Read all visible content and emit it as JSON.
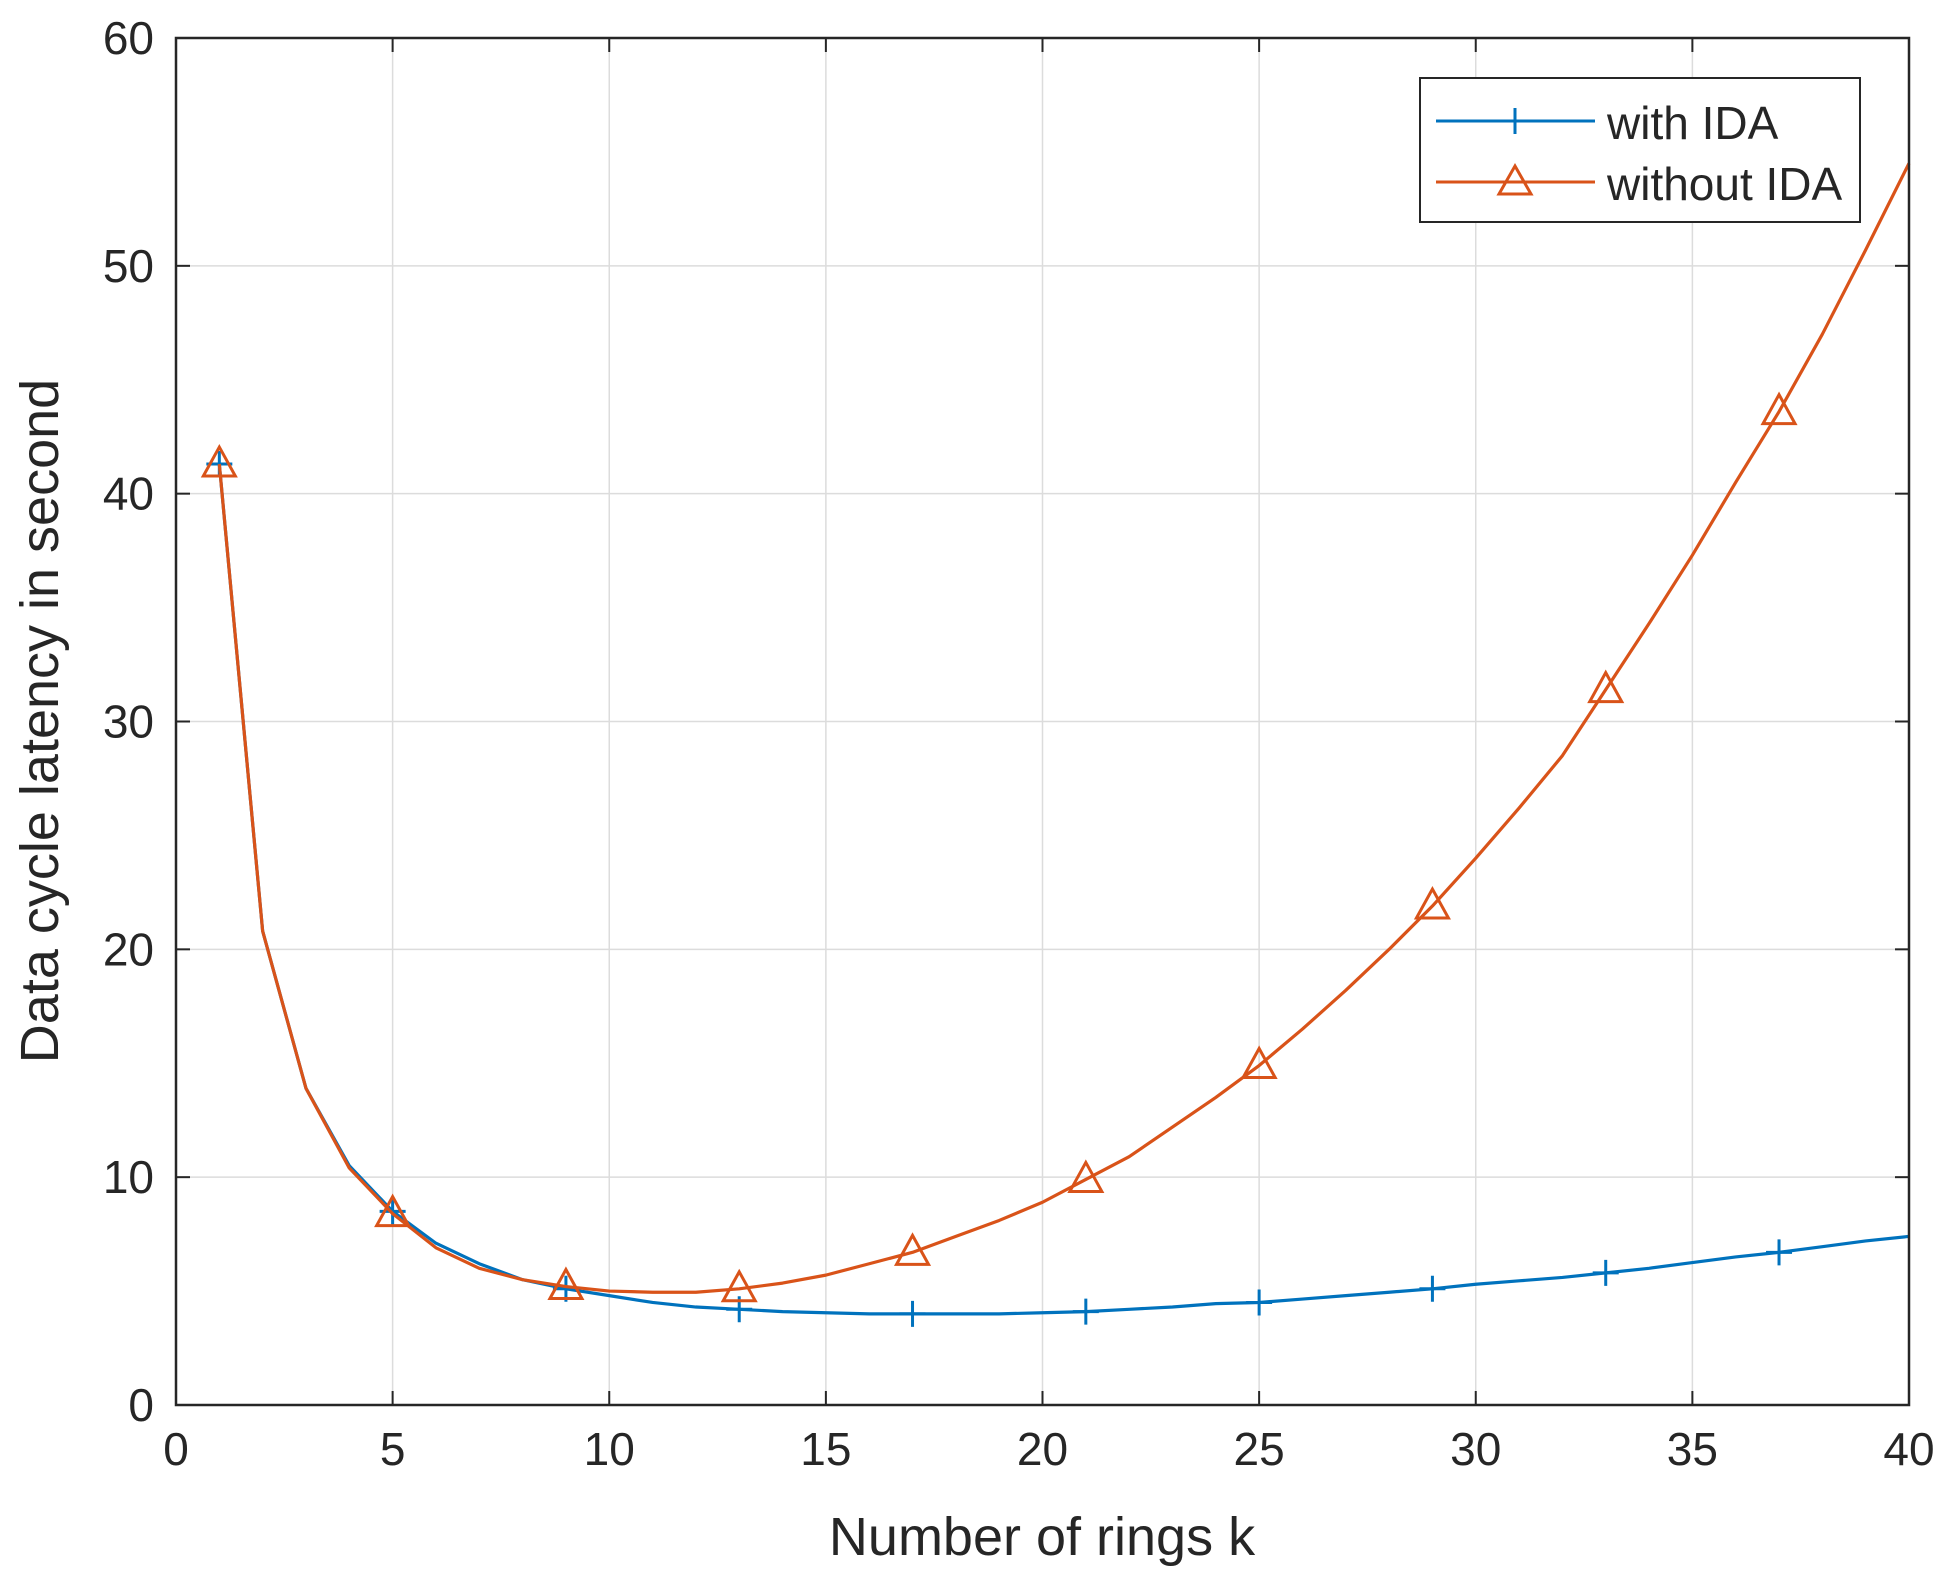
{
  "chart_data": {
    "type": "line",
    "title": "",
    "xlabel": "Number of rings k",
    "ylabel": "Data cycle latency in second",
    "xlim": [
      0,
      40
    ],
    "ylim": [
      0,
      60
    ],
    "xticks": [
      0,
      5,
      10,
      15,
      20,
      25,
      30,
      35,
      40
    ],
    "yticks": [
      0,
      10,
      20,
      30,
      40,
      50,
      60
    ],
    "grid": true,
    "legend_position": "top-right",
    "series": [
      {
        "name": "with IDA",
        "color": "#0072BD",
        "marker": "plus",
        "x": [
          1,
          2,
          3,
          4,
          5,
          6,
          7,
          8,
          9,
          10,
          11,
          12,
          13,
          14,
          15,
          16,
          17,
          18,
          19,
          20,
          21,
          22,
          23,
          24,
          25,
          26,
          27,
          28,
          29,
          30,
          31,
          32,
          33,
          34,
          35,
          36,
          37,
          38,
          39,
          40
        ],
        "y": [
          41.3,
          20.8,
          13.9,
          10.5,
          8.5,
          7.1,
          6.2,
          5.5,
          5.1,
          4.8,
          4.5,
          4.3,
          4.2,
          4.1,
          4.05,
          4.0,
          4.0,
          4.0,
          4.0,
          4.05,
          4.1,
          4.2,
          4.3,
          4.45,
          4.5,
          4.65,
          4.8,
          4.95,
          5.1,
          5.3,
          5.45,
          5.6,
          5.8,
          6.0,
          6.25,
          6.5,
          6.7,
          6.95,
          7.2,
          7.4
        ],
        "marker_x": [
          1,
          5,
          9,
          13,
          17,
          21,
          25,
          29,
          33,
          37
        ],
        "marker_y": [
          41.3,
          8.5,
          5.1,
          4.2,
          4.0,
          4.1,
          4.5,
          5.1,
          5.8,
          6.7
        ]
      },
      {
        "name": "without IDA",
        "color": "#D95319",
        "marker": "triangle",
        "x": [
          1,
          2,
          3,
          4,
          5,
          6,
          7,
          8,
          9,
          10,
          11,
          12,
          13,
          14,
          15,
          16,
          17,
          18,
          19,
          20,
          21,
          22,
          23,
          24,
          25,
          26,
          27,
          28,
          29,
          30,
          31,
          32,
          33,
          34,
          35,
          36,
          37,
          38,
          39,
          40
        ],
        "y": [
          41.3,
          20.8,
          13.9,
          10.4,
          8.4,
          6.9,
          6.0,
          5.5,
          5.2,
          5.0,
          4.95,
          4.95,
          5.1,
          5.35,
          5.7,
          6.2,
          6.7,
          7.4,
          8.1,
          8.9,
          9.9,
          10.9,
          12.2,
          13.5,
          14.9,
          16.5,
          18.2,
          20.0,
          21.9,
          24.0,
          26.2,
          28.5,
          31.4,
          34.3,
          37.3,
          40.5,
          43.6,
          47.0,
          50.7,
          54.5
        ],
        "marker_x": [
          1,
          5,
          9,
          13,
          17,
          21,
          25,
          29,
          33,
          37
        ],
        "marker_y": [
          41.3,
          8.4,
          5.2,
          5.1,
          6.7,
          9.9,
          14.9,
          21.9,
          31.4,
          43.6
        ]
      }
    ]
  }
}
